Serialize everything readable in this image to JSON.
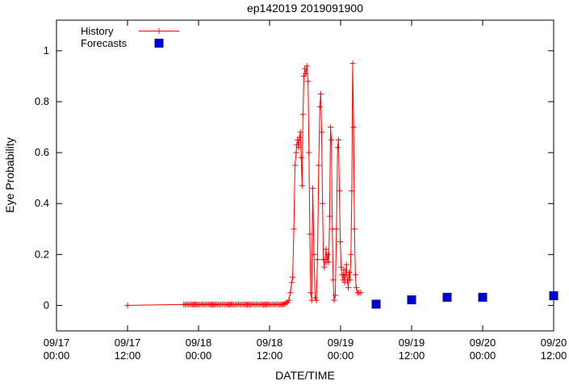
{
  "background": "#ffffff",
  "chart_data": {
    "type": "line",
    "title": "ep142019 2019091900",
    "xlabel": "DATE/TIME",
    "ylabel": "Eye Probability",
    "x_unit": "hours since 09/17 00:00",
    "xlim_hours": [
      0,
      84
    ],
    "ylim": [
      -0.1,
      1.12
    ],
    "grid": false,
    "legend_position": "top-left-inside",
    "xticks": [
      {
        "h": 0,
        "line1": "09/17",
        "line2": "00:00"
      },
      {
        "h": 12,
        "line1": "09/17",
        "line2": "12:00"
      },
      {
        "h": 24,
        "line1": "09/18",
        "line2": "00:00"
      },
      {
        "h": 36,
        "line1": "09/18",
        "line2": "12:00"
      },
      {
        "h": 48,
        "line1": "09/19",
        "line2": "00:00"
      },
      {
        "h": 60,
        "line1": "09/19",
        "line2": "12:00"
      },
      {
        "h": 72,
        "line1": "09/20",
        "line2": "00:00"
      },
      {
        "h": 84,
        "line1": "09/20",
        "line2": "12:00"
      }
    ],
    "yticks": [
      {
        "v": 0,
        "label": "0"
      },
      {
        "v": 0.2,
        "label": "0.2"
      },
      {
        "v": 0.4,
        "label": "0.4"
      },
      {
        "v": 0.6,
        "label": "0.6"
      },
      {
        "v": 0.8,
        "label": "0.8"
      },
      {
        "v": 1,
        "label": "1"
      }
    ],
    "series": [
      {
        "name": "History",
        "style": "linespoints",
        "marker": "plus",
        "color": "#ff0000",
        "points": [
          [
            12,
            0
          ],
          [
            21.5,
            0.004
          ],
          [
            21.75,
            0.003
          ],
          [
            22,
            0.005
          ],
          [
            22.25,
            0.003
          ],
          [
            22.5,
            0.004
          ],
          [
            22.75,
            0.004
          ],
          [
            23,
            0.003
          ],
          [
            23.25,
            0.005
          ],
          [
            23.5,
            0.004
          ],
          [
            23.75,
            0.003
          ],
          [
            24,
            0.004
          ],
          [
            24.25,
            0.003
          ],
          [
            24.5,
            0.005
          ],
          [
            24.75,
            0.004
          ],
          [
            25,
            0.003
          ],
          [
            25.25,
            0.004
          ],
          [
            25.5,
            0.004
          ],
          [
            25.75,
            0.005
          ],
          [
            26,
            0.003
          ],
          [
            26.25,
            0.004
          ],
          [
            26.5,
            0.003
          ],
          [
            26.75,
            0.004
          ],
          [
            27,
            0.005
          ],
          [
            27.25,
            0.003
          ],
          [
            27.5,
            0.004
          ],
          [
            27.75,
            0.003
          ],
          [
            28,
            0.004
          ],
          [
            28.25,
            0.005
          ],
          [
            28.5,
            0.003
          ],
          [
            28.75,
            0.004
          ],
          [
            29,
            0.004
          ],
          [
            29.25,
            0.003
          ],
          [
            29.5,
            0.005
          ],
          [
            29.75,
            0.004
          ],
          [
            30,
            0.003
          ],
          [
            30.25,
            0.004
          ],
          [
            30.5,
            0.003
          ],
          [
            30.75,
            0.005
          ],
          [
            31,
            0.004
          ],
          [
            31.25,
            0.003
          ],
          [
            31.5,
            0.004
          ],
          [
            31.75,
            0.004
          ],
          [
            32,
            0.005
          ],
          [
            32.25,
            0.003
          ],
          [
            32.5,
            0.004
          ],
          [
            32.75,
            0.003
          ],
          [
            33,
            0.004
          ],
          [
            33.25,
            0.005
          ],
          [
            33.5,
            0.003
          ],
          [
            33.75,
            0.004
          ],
          [
            34,
            0.004
          ],
          [
            34.25,
            0.003
          ],
          [
            34.5,
            0.005
          ],
          [
            34.75,
            0.004
          ],
          [
            35,
            0.003
          ],
          [
            35.25,
            0.004
          ],
          [
            35.5,
            0.003
          ],
          [
            35.75,
            0.005
          ],
          [
            36,
            0.004
          ],
          [
            36.25,
            0.003
          ],
          [
            36.5,
            0.004
          ],
          [
            36.75,
            0.004
          ],
          [
            37,
            0.003
          ],
          [
            37.25,
            0.005
          ],
          [
            37.5,
            0.004
          ],
          [
            37.75,
            0.003
          ],
          [
            38,
            0.004
          ],
          [
            38.25,
            0.004
          ],
          [
            38.5,
            0.006
          ],
          [
            38.75,
            0.01
          ],
          [
            39,
            0.012
          ],
          [
            39.25,
            0.02
          ],
          [
            39.5,
            0.05
          ],
          [
            39.75,
            0.09
          ],
          [
            39.9,
            0.11
          ],
          [
            40.1,
            0.3
          ],
          [
            40.3,
            0.55
          ],
          [
            40.5,
            0.6
          ],
          [
            40.6,
            0.63
          ],
          [
            40.75,
            0.65
          ],
          [
            40.9,
            0.62
          ],
          [
            41.05,
            0.66
          ],
          [
            41.2,
            0.68
          ],
          [
            41.35,
            0.58
          ],
          [
            41.5,
            0.47
          ],
          [
            41.65,
            0.75
          ],
          [
            41.8,
            0.9
          ],
          [
            41.95,
            0.93
          ],
          [
            42.1,
            0.91
          ],
          [
            42.3,
            0.94
          ],
          [
            42.5,
            0.88
          ],
          [
            42.65,
            0.6
          ],
          [
            42.8,
            0.28
          ],
          [
            42.95,
            0.05
          ],
          [
            43.1,
            0.02
          ],
          [
            43.3,
            0.46
          ],
          [
            43.5,
            0.2
          ],
          [
            43.7,
            0.03
          ],
          [
            43.9,
            0.02
          ],
          [
            44.1,
            0.18
          ],
          [
            44.3,
            0.55
          ],
          [
            44.5,
            0.78
          ],
          [
            44.65,
            0.83
          ],
          [
            44.8,
            0.68
          ],
          [
            44.95,
            0.4
          ],
          [
            45.1,
            0.18
          ],
          [
            45.25,
            0.15
          ],
          [
            45.4,
            0.18
          ],
          [
            45.55,
            0.22
          ],
          [
            45.7,
            0.17
          ],
          [
            45.85,
            0.2
          ],
          [
            46,
            0.17
          ],
          [
            46.15,
            0.35
          ],
          [
            46.3,
            0.7
          ],
          [
            46.45,
            0.65
          ],
          [
            46.6,
            0.3
          ],
          [
            46.75,
            0.1
          ],
          [
            46.9,
            0.02
          ],
          [
            47.1,
            0.04
          ],
          [
            47.3,
            0.3
          ],
          [
            47.5,
            0.62
          ],
          [
            47.65,
            0.65
          ],
          [
            47.8,
            0.45
          ],
          [
            47.95,
            0.25
          ],
          [
            48.1,
            0.15
          ],
          [
            48.25,
            0.12
          ],
          [
            48.4,
            0.1
          ],
          [
            48.55,
            0.14
          ],
          [
            48.7,
            0.09
          ],
          [
            48.85,
            0.12
          ],
          [
            49,
            0.16
          ],
          [
            49.15,
            0.1
          ],
          [
            49.3,
            0.07
          ],
          [
            49.45,
            0.13
          ],
          [
            49.6,
            0.1
          ],
          [
            49.75,
            0.2
          ],
          [
            49.9,
            0.45
          ],
          [
            50.05,
            0.95
          ],
          [
            50.2,
            0.7
          ],
          [
            50.35,
            0.3
          ],
          [
            50.5,
            0.12
          ],
          [
            50.65,
            0.07
          ],
          [
            50.85,
            0.05
          ],
          [
            51.1,
            0.05
          ],
          [
            51.4,
            0.05
          ]
        ]
      },
      {
        "name": "Forecasts",
        "style": "points",
        "marker": "filled-square",
        "color": "#0000cc",
        "points": [
          [
            54,
            0.005
          ],
          [
            60,
            0.022
          ],
          [
            66,
            0.032
          ],
          [
            72,
            0.032
          ],
          [
            84,
            0.038
          ]
        ]
      }
    ]
  }
}
